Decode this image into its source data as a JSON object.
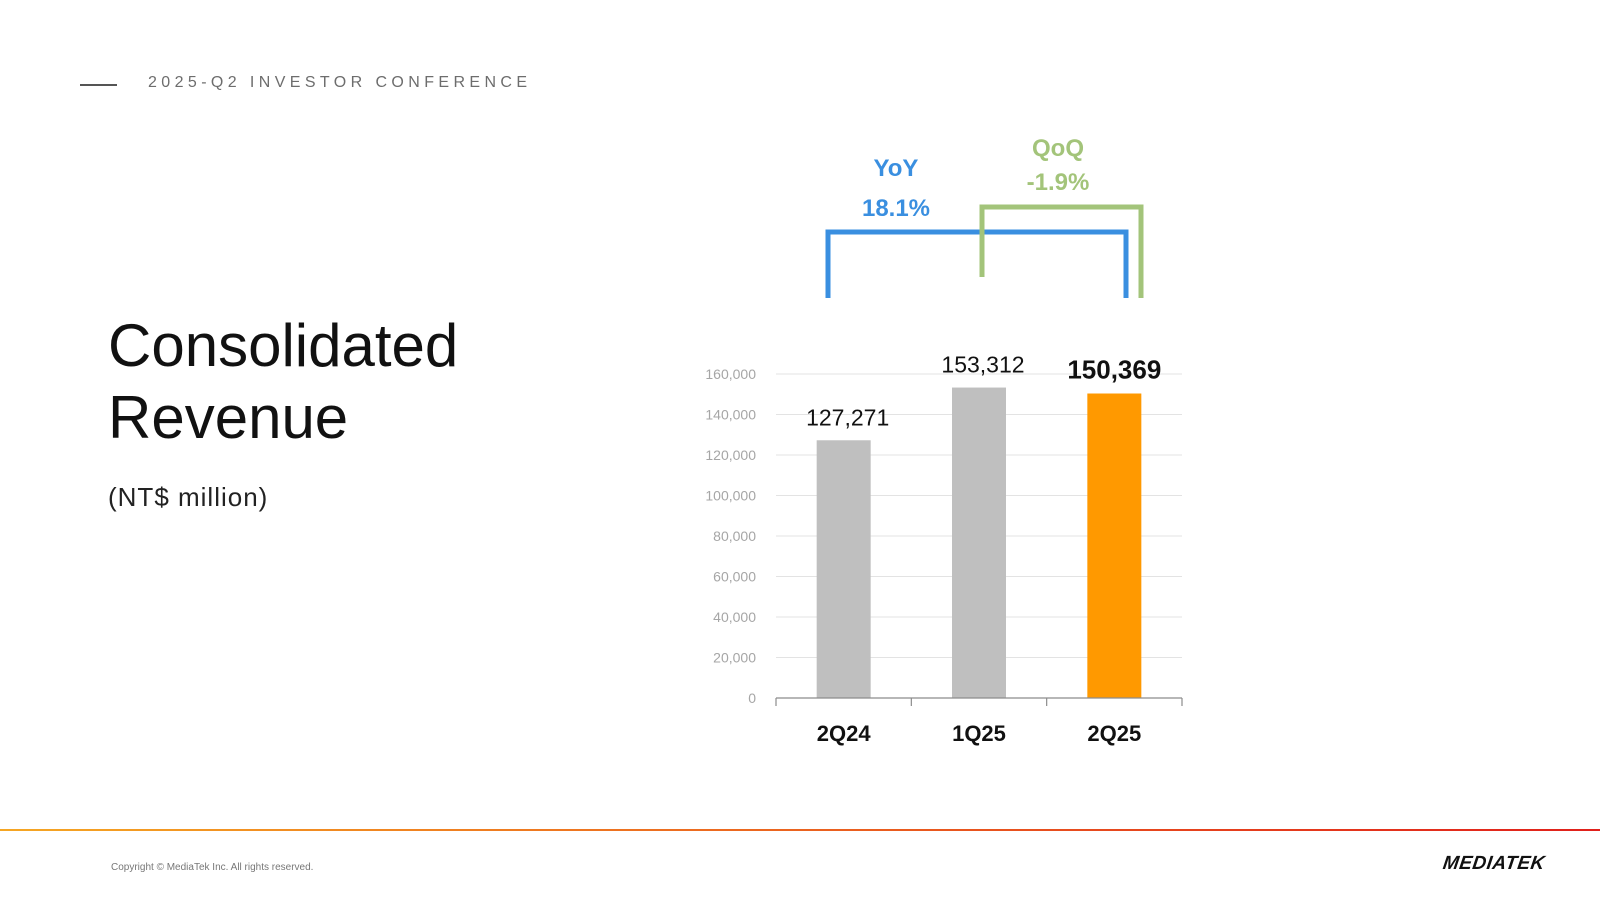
{
  "header": {
    "conference": "2025-Q2 INVESTOR CONFERENCE"
  },
  "slide": {
    "title_line1": "Consolidated",
    "title_line2": "Revenue",
    "unit": "(NT$ million)"
  },
  "comparisons": {
    "yoy": {
      "label": "YoY",
      "value": "18.1%",
      "color": "#3a8fe0"
    },
    "qoq": {
      "label": "QoQ",
      "value": "-1.9%",
      "color": "#a3c47a"
    }
  },
  "chart_data": {
    "type": "bar",
    "categories": [
      "2Q24",
      "1Q25",
      "2Q25"
    ],
    "values": [
      127271,
      153312,
      150369
    ],
    "value_labels": [
      "127,271",
      "153,312",
      "150,369"
    ],
    "bar_colors": [
      "#bfbfbf",
      "#bfbfbf",
      "#ff9900"
    ],
    "highlight_index": 2,
    "ylim": [
      0,
      160000
    ],
    "yticks": [
      0,
      20000,
      40000,
      60000,
      80000,
      100000,
      120000,
      140000,
      160000
    ],
    "ytick_labels": [
      "0",
      "20,000",
      "40,000",
      "60,000",
      "80,000",
      "100,000",
      "120,000",
      "140,000",
      "160,000"
    ],
    "grid": true,
    "title": "",
    "xlabel": "",
    "ylabel": ""
  },
  "footer": {
    "copyright": "Copyright © MediaTek Inc. All rights reserved.",
    "logo_text": "MEDIATEK",
    "rule_color_start": "#f5a623",
    "rule_color_end": "#e0201b"
  }
}
